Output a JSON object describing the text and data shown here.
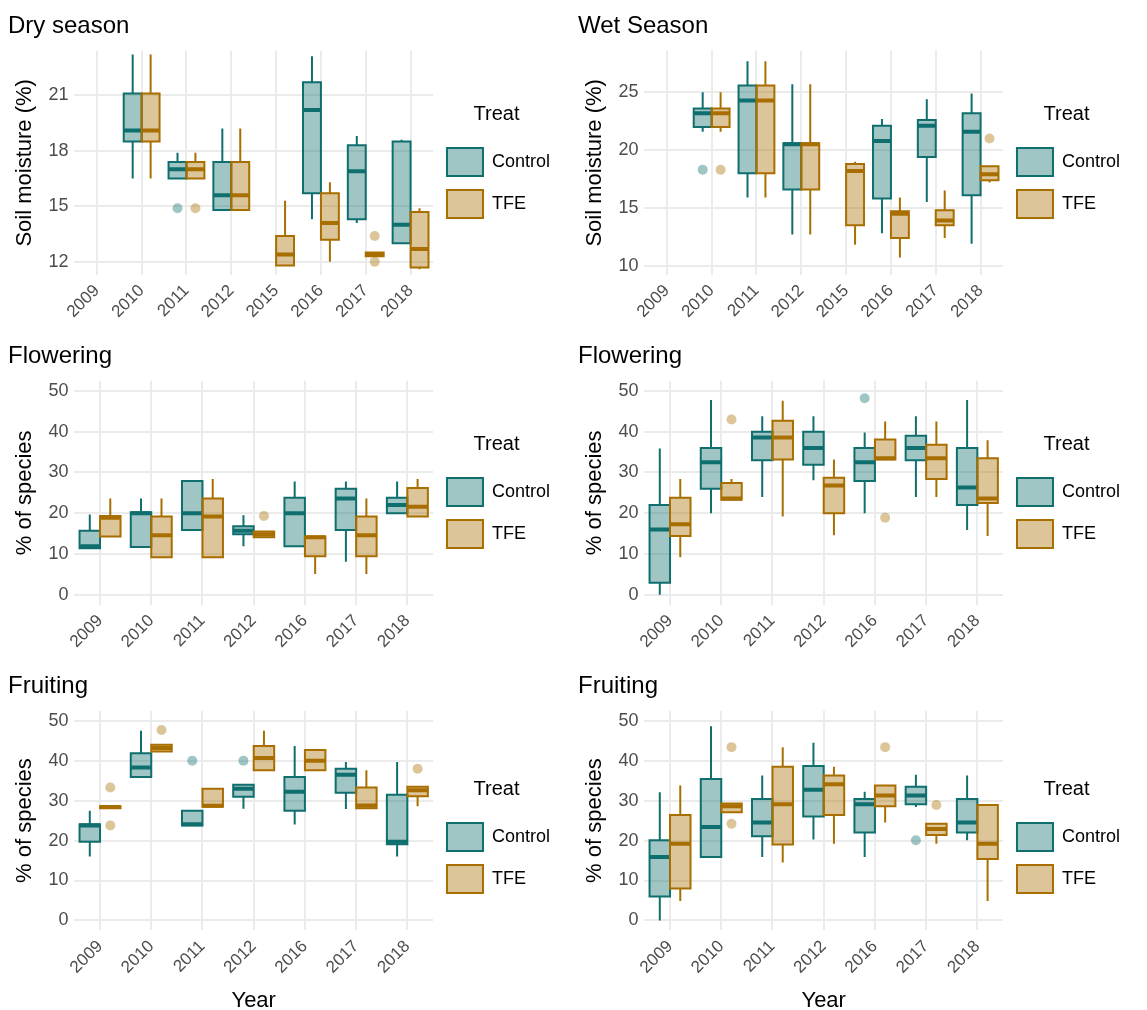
{
  "chart_data": [
    {
      "type": "box",
      "title": "Dry season",
      "ylabel": "Soil moisture (%)",
      "legend_title": "Treat",
      "legend": "right",
      "grid": true,
      "categories": [
        "2009",
        "2010",
        "2011",
        "2012",
        "2015",
        "2016",
        "2017",
        "2018"
      ],
      "ylim": [
        11.3,
        23.4
      ],
      "yticks": [
        12,
        15,
        18,
        21
      ],
      "series": [
        {
          "name": "Control",
          "color": "#0f6e6e",
          "boxes": [
            null,
            {
              "low": 16.5,
              "q1": 18.5,
              "median": 19.1,
              "q3": 21.1,
              "high": 23.2
            },
            {
              "low": 16.5,
              "q1": 16.5,
              "median": 17.0,
              "q3": 17.4,
              "high": 17.9,
              "outliers": [
                14.9
              ]
            },
            {
              "low": 14.8,
              "q1": 14.8,
              "median": 15.6,
              "q3": 17.4,
              "high": 19.2
            },
            null,
            {
              "low": 14.3,
              "q1": 15.7,
              "median": 20.2,
              "q3": 21.7,
              "high": 23.1
            },
            {
              "low": 14.1,
              "q1": 14.3,
              "median": 16.9,
              "q3": 18.3,
              "high": 18.8
            },
            {
              "low": 13.0,
              "q1": 13.0,
              "median": 14.0,
              "q3": 18.5,
              "high": 18.6
            }
          ]
        },
        {
          "name": "TFE",
          "color": "#a86e00",
          "boxes": [
            null,
            {
              "low": 16.5,
              "q1": 18.5,
              "median": 19.1,
              "q3": 21.1,
              "high": 23.2
            },
            {
              "low": 16.5,
              "q1": 16.5,
              "median": 17.0,
              "q3": 17.4,
              "high": 17.9,
              "outliers": [
                14.9
              ]
            },
            {
              "low": 14.8,
              "q1": 14.8,
              "median": 15.6,
              "q3": 17.4,
              "high": 19.2
            },
            {
              "low": 11.8,
              "q1": 11.8,
              "median": 12.4,
              "q3": 13.4,
              "high": 15.3
            },
            {
              "low": 12.0,
              "q1": 13.2,
              "median": 14.1,
              "q3": 15.7,
              "high": 16.3
            },
            {
              "low": 12.3,
              "q1": 12.3,
              "median": 12.4,
              "q3": 12.5,
              "high": 12.5,
              "outliers": [
                13.4,
                12.0
              ]
            },
            {
              "low": 11.6,
              "q1": 11.7,
              "median": 12.7,
              "q3": 14.7,
              "high": 14.9
            }
          ]
        }
      ]
    },
    {
      "type": "box",
      "title": "Wet Season",
      "ylabel": "Soil moisture (%)",
      "legend_title": "Treat",
      "legend": "right",
      "grid": true,
      "categories": [
        "2009",
        "2010",
        "2011",
        "2012",
        "2015",
        "2016",
        "2017",
        "2018"
      ],
      "ylim": [
        9.2,
        28.6
      ],
      "yticks": [
        10,
        15,
        20,
        25
      ],
      "series": [
        {
          "name": "Control",
          "color": "#0f6e6e",
          "boxes": [
            null,
            {
              "low": 21.6,
              "q1": 22.0,
              "median": 23.2,
              "q3": 23.6,
              "high": 25.0,
              "outliers": [
                18.3
              ]
            },
            {
              "low": 15.9,
              "q1": 18.0,
              "median": 24.3,
              "q3": 25.6,
              "high": 27.7
            },
            {
              "low": 12.7,
              "q1": 16.6,
              "median": 20.5,
              "q3": 20.6,
              "high": 25.7
            },
            null,
            {
              "low": 12.8,
              "q1": 15.8,
              "median": 20.8,
              "q3": 22.1,
              "high": 22.7
            },
            {
              "low": 15.5,
              "q1": 19.4,
              "median": 22.1,
              "q3": 22.6,
              "high": 24.4
            },
            {
              "low": 11.9,
              "q1": 16.1,
              "median": 21.6,
              "q3": 23.2,
              "high": 24.9
            }
          ]
        },
        {
          "name": "TFE",
          "color": "#a86e00",
          "boxes": [
            null,
            {
              "low": 21.6,
              "q1": 22.0,
              "median": 23.2,
              "q3": 23.6,
              "high": 25.0,
              "outliers": [
                18.3
              ]
            },
            {
              "low": 15.9,
              "q1": 18.0,
              "median": 24.3,
              "q3": 25.6,
              "high": 27.7
            },
            {
              "low": 12.7,
              "q1": 16.6,
              "median": 20.5,
              "q3": 20.6,
              "high": 25.7
            },
            {
              "low": 11.8,
              "q1": 13.5,
              "median": 18.2,
              "q3": 18.8,
              "high": 19.0
            },
            {
              "low": 10.7,
              "q1": 12.4,
              "median": 14.5,
              "q3": 14.7,
              "high": 15.9
            },
            {
              "low": 12.4,
              "q1": 13.5,
              "median": 13.9,
              "q3": 14.8,
              "high": 16.5
            },
            {
              "low": 17.2,
              "q1": 17.4,
              "median": 17.9,
              "q3": 18.6,
              "high": 18.6,
              "outliers": [
                21.0
              ]
            }
          ]
        }
      ]
    },
    {
      "type": "box",
      "title": "Flowering",
      "ylabel": "% of species",
      "legend_title": "Treat",
      "legend": "right",
      "grid": true,
      "categories": [
        "2009",
        "2010",
        "2011",
        "2012",
        "2016",
        "2017",
        "2018"
      ],
      "ylim": [
        -2.5,
        52.5
      ],
      "yticks": [
        0,
        10,
        20,
        30,
        40,
        50
      ],
      "series": [
        {
          "name": "Control",
          "color": "#0f6e6e",
          "boxes": [
            {
              "low": 11.4,
              "q1": 11.4,
              "median": 11.9,
              "q3": 15.7,
              "high": 19.7
            },
            {
              "low": 11.7,
              "q1": 11.7,
              "median": 20.0,
              "q3": 20.2,
              "high": 23.6
            },
            {
              "low": 15.9,
              "q1": 15.9,
              "median": 20.0,
              "q3": 27.9,
              "high": 27.9
            },
            {
              "low": 11.9,
              "q1": 14.8,
              "median": 15.7,
              "q3": 16.8,
              "high": 19.5
            },
            {
              "low": 11.9,
              "q1": 11.9,
              "median": 20.0,
              "q3": 23.8,
              "high": 27.8
            },
            {
              "low": 8.1,
              "q1": 15.9,
              "median": 23.6,
              "q3": 26.0,
              "high": 27.8
            },
            {
              "low": 20.0,
              "q1": 20.0,
              "median": 22.0,
              "q3": 23.8,
              "high": 27.8
            }
          ]
        },
        {
          "name": "TFE",
          "color": "#a86e00",
          "boxes": [
            {
              "low": 14.3,
              "q1": 14.3,
              "median": 18.9,
              "q3": 19.3,
              "high": 23.6
            },
            {
              "low": 9.2,
              "q1": 9.2,
              "median": 14.6,
              "q3": 19.2,
              "high": 23.6
            },
            {
              "low": 9.2,
              "q1": 9.2,
              "median": 19.2,
              "q3": 23.6,
              "high": 28.4
            },
            {
              "low": 14.1,
              "q1": 14.1,
              "median": 14.8,
              "q3": 15.5,
              "high": 15.5,
              "outliers": [
                19.3
              ]
            },
            {
              "low": 5.1,
              "q1": 9.4,
              "median": 14.1,
              "q3": 14.3,
              "high": 14.3
            },
            {
              "low": 5.1,
              "q1": 9.4,
              "median": 14.6,
              "q3": 19.2,
              "high": 23.6
            },
            {
              "low": 19.2,
              "q1": 19.2,
              "median": 21.6,
              "q3": 26.2,
              "high": 28.4
            }
          ]
        }
      ]
    },
    {
      "type": "box",
      "title": "Flowering",
      "ylabel": "% of species",
      "legend_title": "Treat",
      "legend": "right",
      "grid": true,
      "categories": [
        "2009",
        "2010",
        "2011",
        "2012",
        "2016",
        "2017",
        "2018"
      ],
      "ylim": [
        -2.5,
        52.5
      ],
      "yticks": [
        0,
        10,
        20,
        30,
        40,
        50
      ],
      "series": [
        {
          "name": "Control",
          "color": "#0f6e6e",
          "boxes": [
            {
              "low": 0,
              "q1": 2.9,
              "median": 16.0,
              "q3": 22.0,
              "high": 35.9
            },
            {
              "low": 20.0,
              "q1": 26.0,
              "median": 32.5,
              "q3": 36.0,
              "high": 47.8
            },
            {
              "low": 24.0,
              "q1": 33.0,
              "median": 38.6,
              "q3": 40.0,
              "high": 43.8
            },
            {
              "low": 28.1,
              "q1": 31.9,
              "median": 36.0,
              "q3": 40.0,
              "high": 43.8
            },
            {
              "low": 20.0,
              "q1": 27.9,
              "median": 32.5,
              "q3": 36.0,
              "high": 39.8,
              "outliers": [
                48.2
              ]
            },
            {
              "low": 24.0,
              "q1": 33.0,
              "median": 36.0,
              "q3": 39.0,
              "high": 43.8
            },
            {
              "low": 15.9,
              "q1": 22.0,
              "median": 26.3,
              "q3": 36.0,
              "high": 47.8
            }
          ]
        },
        {
          "name": "TFE",
          "color": "#a86e00",
          "boxes": [
            {
              "low": 9.2,
              "q1": 14.4,
              "median": 17.3,
              "q3": 23.8,
              "high": 28.4
            },
            {
              "low": 23.3,
              "q1": 23.3,
              "median": 23.6,
              "q3": 27.4,
              "high": 28.4,
              "outliers": [
                43.0
              ]
            },
            {
              "low": 19.2,
              "q1": 33.2,
              "median": 38.6,
              "q3": 42.7,
              "high": 47.6
            },
            {
              "low": 14.6,
              "q1": 20.0,
              "median": 26.8,
              "q3": 28.7,
              "high": 33.2
            },
            {
              "low": 33.2,
              "q1": 33.2,
              "median": 33.5,
              "q3": 38.1,
              "high": 42.5,
              "outliers": [
                18.9
              ]
            },
            {
              "low": 24.0,
              "q1": 28.4,
              "median": 33.5,
              "q3": 36.8,
              "high": 42.5
            },
            {
              "low": 14.4,
              "q1": 22.5,
              "median": 23.6,
              "q3": 33.5,
              "high": 37.9
            }
          ]
        }
      ]
    },
    {
      "type": "box",
      "title": "Fruiting",
      "ylabel": "% of species",
      "xlabel": "Year",
      "legend_title": "Treat",
      "legend": "right",
      "grid": true,
      "categories": [
        "2009",
        "2010",
        "2011",
        "2012",
        "2016",
        "2017",
        "2018"
      ],
      "ylim": [
        -2.5,
        52.5
      ],
      "yticks": [
        0,
        10,
        20,
        30,
        40,
        50
      ],
      "series": [
        {
          "name": "Control",
          "color": "#0f6e6e",
          "boxes": [
            {
              "low": 16.0,
              "q1": 19.7,
              "median": 23.8,
              "q3": 24.1,
              "high": 27.5
            },
            {
              "low": 35.9,
              "q1": 35.9,
              "median": 38.3,
              "q3": 41.9,
              "high": 47.5
            },
            {
              "low": 23.8,
              "q1": 23.8,
              "median": 24.1,
              "q3": 27.5,
              "high": 27.5,
              "outliers": [
                40.0
              ]
            },
            {
              "low": 28.0,
              "q1": 31.0,
              "median": 33.0,
              "q3": 34.0,
              "high": 34.0,
              "outliers": [
                40.0
              ]
            },
            {
              "low": 24.0,
              "q1": 27.5,
              "median": 32.2,
              "q3": 35.9,
              "high": 43.7
            },
            {
              "low": 27.9,
              "q1": 32.0,
              "median": 36.5,
              "q3": 38.0,
              "high": 39.7
            },
            {
              "low": 16.0,
              "q1": 19.1,
              "median": 19.7,
              "q3": 31.5,
              "high": 39.7
            }
          ]
        },
        {
          "name": "TFE",
          "color": "#a86e00",
          "boxes": [
            {
              "low": 28.1,
              "q1": 28.1,
              "median": 28.4,
              "q3": 28.6,
              "high": 28.6,
              "outliers": [
                33.3,
                23.8
              ]
            },
            {
              "low": 42.3,
              "q1": 42.3,
              "median": 43.2,
              "q3": 44.0,
              "high": 44.0,
              "outliers": [
                47.7
              ]
            },
            {
              "low": 28.5,
              "q1": 28.5,
              "median": 28.7,
              "q3": 33.0,
              "high": 33.0
            },
            {
              "low": 37.6,
              "q1": 37.6,
              "median": 40.7,
              "q3": 43.7,
              "high": 47.5
            },
            {
              "low": 37.6,
              "q1": 37.6,
              "median": 40.0,
              "q3": 42.7,
              "high": 42.7
            },
            {
              "low": 28.1,
              "q1": 28.1,
              "median": 28.8,
              "q3": 33.3,
              "high": 37.6
            },
            {
              "low": 28.6,
              "q1": 31.1,
              "median": 32.6,
              "q3": 33.5,
              "high": 33.5,
              "outliers": [
                38.0
              ]
            }
          ]
        }
      ]
    },
    {
      "type": "box",
      "title": "Fruiting",
      "ylabel": "% of species",
      "xlabel": "Year",
      "legend_title": "Treat",
      "legend": "right",
      "grid": true,
      "categories": [
        "2009",
        "2010",
        "2011",
        "2012",
        "2016",
        "2017",
        "2018"
      ],
      "ylim": [
        -2.5,
        52.5
      ],
      "yticks": [
        0,
        10,
        20,
        30,
        40,
        50
      ],
      "series": [
        {
          "name": "Control",
          "color": "#0f6e6e",
          "boxes": [
            {
              "low": 0,
              "q1": 6.0,
              "median": 15.9,
              "q3": 20.1,
              "high": 32.1
            },
            {
              "low": 15.9,
              "q1": 15.9,
              "median": 23.4,
              "q3": 35.4,
              "high": 48.6
            },
            {
              "low": 15.9,
              "q1": 21.1,
              "median": 24.5,
              "q3": 30.4,
              "high": 36.3
            },
            {
              "low": 20.3,
              "q1": 26.0,
              "median": 32.7,
              "q3": 38.7,
              "high": 44.5
            },
            {
              "low": 15.9,
              "q1": 22.0,
              "median": 29.1,
              "q3": 30.4,
              "high": 32.2
            },
            {
              "low": 28.4,
              "q1": 29.1,
              "median": 31.3,
              "q3": 33.5,
              "high": 36.5,
              "outliers": [
                20.1
              ]
            },
            {
              "low": 20.1,
              "q1": 22.0,
              "median": 24.5,
              "q3": 30.4,
              "high": 36.3
            }
          ]
        },
        {
          "name": "TFE",
          "color": "#a86e00",
          "boxes": [
            {
              "low": 4.9,
              "q1": 8.0,
              "median": 19.2,
              "q3": 26.4,
              "high": 33.8
            },
            {
              "low": 27.1,
              "q1": 27.1,
              "median": 28.6,
              "q3": 29.3,
              "high": 29.3,
              "outliers": [
                43.4,
                24.2
              ]
            },
            {
              "low": 14.5,
              "q1": 19.0,
              "median": 29.1,
              "q3": 38.5,
              "high": 43.4
            },
            {
              "low": 19.2,
              "q1": 26.4,
              "median": 34.1,
              "q3": 36.3,
              "high": 38.5
            },
            {
              "low": 24.5,
              "q1": 28.6,
              "median": 31.3,
              "q3": 33.8,
              "high": 33.8,
              "outliers": [
                43.4
              ]
            },
            {
              "low": 19.2,
              "q1": 21.4,
              "median": 22.9,
              "q3": 24.2,
              "high": 24.2,
              "outliers": [
                28.9
              ]
            },
            {
              "low": 4.9,
              "q1": 15.4,
              "median": 19.2,
              "q3": 28.9,
              "high": 28.9
            }
          ]
        }
      ]
    }
  ]
}
